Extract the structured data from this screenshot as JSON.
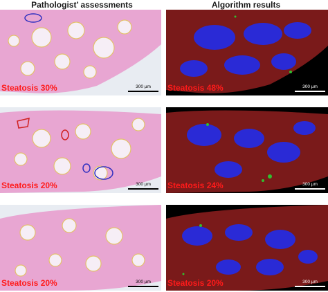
{
  "headers": {
    "left": "Pathologist’ assessments",
    "right": "Algorithm results"
  },
  "rows": [
    {
      "path_label": "Steatosis 30%",
      "algo_label": "Steatosis 48%",
      "scale": "300 µm"
    },
    {
      "path_label": "Steatosis 20%",
      "algo_label": "Steatosis 24%",
      "scale": "300 µm"
    },
    {
      "path_label": "Steatosis 20%",
      "algo_label": "Steatosis 20%",
      "scale": "300 µm"
    }
  ],
  "colors": {
    "label": "#ff1a1a",
    "he_tissue": "#e8a6d2",
    "algo_background": "#000000",
    "algo_blue": "#2a2ad6",
    "algo_red": "#7a1a1a",
    "algo_green": "#30c030"
  }
}
